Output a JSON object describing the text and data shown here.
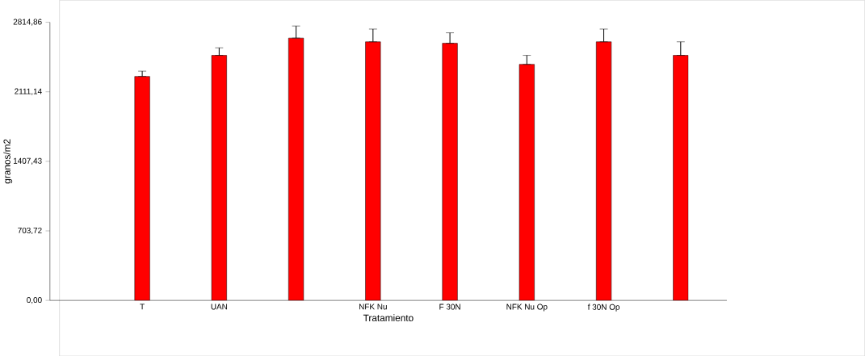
{
  "chart_data": {
    "type": "bar",
    "xlabel": "Tratamiento",
    "ylabel": "granos/m2",
    "categories": [
      "T",
      "UAN",
      null,
      "NFK Nu",
      "F 30N",
      "NFK Nu Op",
      "f 30N Op",
      null
    ],
    "values": [
      2267,
      2480,
      2655,
      2617,
      2602,
      2389,
      2617,
      2480
    ],
    "errors": [
      [
        2267,
        2320
      ],
      [
        2480,
        2556
      ],
      [
        2655,
        2777
      ],
      [
        2617,
        2746
      ],
      [
        2602,
        2708
      ],
      [
        2389,
        2480
      ],
      [
        2617,
        2746
      ],
      [
        2480,
        2617
      ]
    ],
    "color": "#ff0000",
    "ylim": [
      0,
      2814.86
    ],
    "yticks": [
      {
        "value": 0,
        "label": "0,00"
      },
      {
        "value": 703.72,
        "label": "703,72"
      },
      {
        "value": 1407.43,
        "label": "1407,43"
      },
      {
        "value": 2111.14,
        "label": "2111,14"
      },
      {
        "value": 2814.86,
        "label": "2814,86"
      }
    ]
  }
}
